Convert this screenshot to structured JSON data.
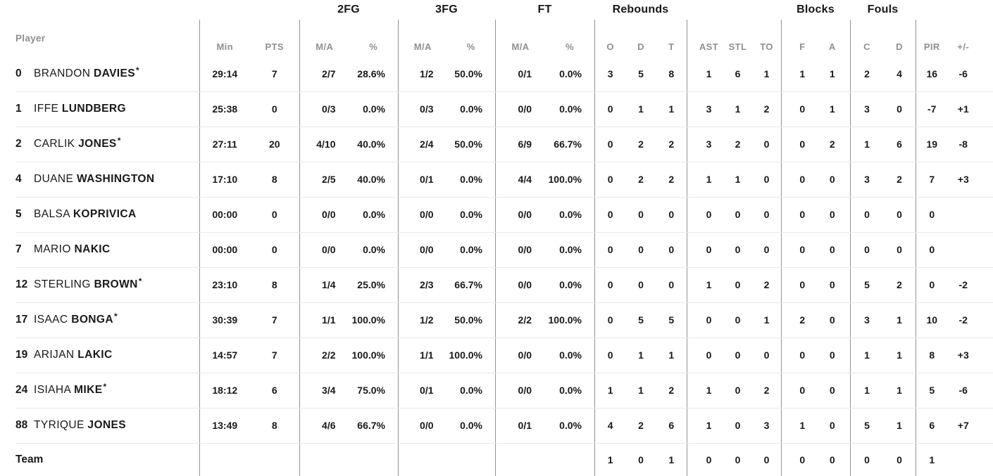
{
  "colors": {
    "background": "#ffffff",
    "text_dark": "#17191c",
    "text_gray": "#8c8f94",
    "vertical_divider": "#939397",
    "row_separator": "#e9e9e9"
  },
  "table": {
    "starter_marker": "*",
    "header": {
      "player": "Player",
      "groups": [
        {
          "label": "",
          "cols": [
            "Min",
            "PTS"
          ]
        },
        {
          "label": "2FG",
          "cols": [
            "M/A",
            "%"
          ]
        },
        {
          "label": "3FG",
          "cols": [
            "M/A",
            "%"
          ]
        },
        {
          "label": "FT",
          "cols": [
            "M/A",
            "%"
          ]
        },
        {
          "label": "Rebounds",
          "cols": [
            "O",
            "D",
            "T"
          ]
        },
        {
          "label": "",
          "cols": [
            "AST",
            "STL",
            "TO"
          ]
        },
        {
          "label": "Blocks",
          "cols": [
            "F",
            "A"
          ]
        },
        {
          "label": "Fouls",
          "cols": [
            "C",
            "D"
          ]
        },
        {
          "label": "",
          "cols": [
            "PIR",
            "+/-"
          ]
        }
      ]
    },
    "rows": [
      {
        "number": "0",
        "first_name": "BRANDON",
        "last_name": "DAVIES",
        "starter": true,
        "min": "29:14",
        "pts": "7",
        "fg2_ma": "2/7",
        "fg2_pct": "28.6%",
        "fg3_ma": "1/2",
        "fg3_pct": "50.0%",
        "ft_ma": "0/1",
        "ft_pct": "0.0%",
        "reb_o": "3",
        "reb_d": "5",
        "reb_t": "8",
        "ast": "1",
        "stl": "6",
        "to": "1",
        "blk_f": "1",
        "blk_a": "1",
        "foul_c": "2",
        "foul_d": "4",
        "pir": "16",
        "plus_minus": "-6"
      },
      {
        "number": "1",
        "first_name": "IFFE",
        "last_name": "LUNDBERG",
        "starter": false,
        "min": "25:38",
        "pts": "0",
        "fg2_ma": "0/3",
        "fg2_pct": "0.0%",
        "fg3_ma": "0/3",
        "fg3_pct": "0.0%",
        "ft_ma": "0/0",
        "ft_pct": "0.0%",
        "reb_o": "0",
        "reb_d": "1",
        "reb_t": "1",
        "ast": "3",
        "stl": "1",
        "to": "2",
        "blk_f": "0",
        "blk_a": "1",
        "foul_c": "3",
        "foul_d": "0",
        "pir": "-7",
        "plus_minus": "+1"
      },
      {
        "number": "2",
        "first_name": "CARLIK",
        "last_name": "JONES",
        "starter": true,
        "min": "27:11",
        "pts": "20",
        "fg2_ma": "4/10",
        "fg2_pct": "40.0%",
        "fg3_ma": "2/4",
        "fg3_pct": "50.0%",
        "ft_ma": "6/9",
        "ft_pct": "66.7%",
        "reb_o": "0",
        "reb_d": "2",
        "reb_t": "2",
        "ast": "3",
        "stl": "2",
        "to": "0",
        "blk_f": "0",
        "blk_a": "2",
        "foul_c": "1",
        "foul_d": "6",
        "pir": "19",
        "plus_minus": "-8"
      },
      {
        "number": "4",
        "first_name": "DUANE",
        "last_name": "WASHINGTON",
        "starter": false,
        "min": "17:10",
        "pts": "8",
        "fg2_ma": "2/5",
        "fg2_pct": "40.0%",
        "fg3_ma": "0/1",
        "fg3_pct": "0.0%",
        "ft_ma": "4/4",
        "ft_pct": "100.0%",
        "reb_o": "0",
        "reb_d": "2",
        "reb_t": "2",
        "ast": "1",
        "stl": "1",
        "to": "0",
        "blk_f": "0",
        "blk_a": "0",
        "foul_c": "3",
        "foul_d": "2",
        "pir": "7",
        "plus_minus": "+3"
      },
      {
        "number": "5",
        "first_name": "BALSA",
        "last_name": "KOPRIVICA",
        "starter": false,
        "min": "00:00",
        "pts": "0",
        "fg2_ma": "0/0",
        "fg2_pct": "0.0%",
        "fg3_ma": "0/0",
        "fg3_pct": "0.0%",
        "ft_ma": "0/0",
        "ft_pct": "0.0%",
        "reb_o": "0",
        "reb_d": "0",
        "reb_t": "0",
        "ast": "0",
        "stl": "0",
        "to": "0",
        "blk_f": "0",
        "blk_a": "0",
        "foul_c": "0",
        "foul_d": "0",
        "pir": "0",
        "plus_minus": ""
      },
      {
        "number": "7",
        "first_name": "MARIO",
        "last_name": "NAKIC",
        "starter": false,
        "min": "00:00",
        "pts": "0",
        "fg2_ma": "0/0",
        "fg2_pct": "0.0%",
        "fg3_ma": "0/0",
        "fg3_pct": "0.0%",
        "ft_ma": "0/0",
        "ft_pct": "0.0%",
        "reb_o": "0",
        "reb_d": "0",
        "reb_t": "0",
        "ast": "0",
        "stl": "0",
        "to": "0",
        "blk_f": "0",
        "blk_a": "0",
        "foul_c": "0",
        "foul_d": "0",
        "pir": "0",
        "plus_minus": ""
      },
      {
        "number": "12",
        "first_name": "STERLING",
        "last_name": "BROWN",
        "starter": true,
        "min": "23:10",
        "pts": "8",
        "fg2_ma": "1/4",
        "fg2_pct": "25.0%",
        "fg3_ma": "2/3",
        "fg3_pct": "66.7%",
        "ft_ma": "0/0",
        "ft_pct": "0.0%",
        "reb_o": "0",
        "reb_d": "0",
        "reb_t": "0",
        "ast": "1",
        "stl": "0",
        "to": "2",
        "blk_f": "0",
        "blk_a": "0",
        "foul_c": "5",
        "foul_d": "2",
        "pir": "0",
        "plus_minus": "-2"
      },
      {
        "number": "17",
        "first_name": "ISAAC",
        "last_name": "BONGA",
        "starter": true,
        "min": "30:39",
        "pts": "7",
        "fg2_ma": "1/1",
        "fg2_pct": "100.0%",
        "fg3_ma": "1/2",
        "fg3_pct": "50.0%",
        "ft_ma": "2/2",
        "ft_pct": "100.0%",
        "reb_o": "0",
        "reb_d": "5",
        "reb_t": "5",
        "ast": "0",
        "stl": "0",
        "to": "1",
        "blk_f": "2",
        "blk_a": "0",
        "foul_c": "3",
        "foul_d": "1",
        "pir": "10",
        "plus_minus": "-2"
      },
      {
        "number": "19",
        "first_name": "ARIJAN",
        "last_name": "LAKIC",
        "starter": false,
        "min": "14:57",
        "pts": "7",
        "fg2_ma": "2/2",
        "fg2_pct": "100.0%",
        "fg3_ma": "1/1",
        "fg3_pct": "100.0%",
        "ft_ma": "0/0",
        "ft_pct": "0.0%",
        "reb_o": "0",
        "reb_d": "1",
        "reb_t": "1",
        "ast": "0",
        "stl": "0",
        "to": "0",
        "blk_f": "0",
        "blk_a": "0",
        "foul_c": "1",
        "foul_d": "1",
        "pir": "8",
        "plus_minus": "+3"
      },
      {
        "number": "24",
        "first_name": "ISIAHA",
        "last_name": "MIKE",
        "starter": true,
        "min": "18:12",
        "pts": "6",
        "fg2_ma": "3/4",
        "fg2_pct": "75.0%",
        "fg3_ma": "0/1",
        "fg3_pct": "0.0%",
        "ft_ma": "0/0",
        "ft_pct": "0.0%",
        "reb_o": "1",
        "reb_d": "1",
        "reb_t": "2",
        "ast": "1",
        "stl": "0",
        "to": "2",
        "blk_f": "0",
        "blk_a": "0",
        "foul_c": "1",
        "foul_d": "1",
        "pir": "5",
        "plus_minus": "-6"
      },
      {
        "number": "88",
        "first_name": "TYRIQUE",
        "last_name": "JONES",
        "starter": false,
        "min": "13:49",
        "pts": "8",
        "fg2_ma": "4/6",
        "fg2_pct": "66.7%",
        "fg3_ma": "0/0",
        "fg3_pct": "0.0%",
        "ft_ma": "0/1",
        "ft_pct": "0.0%",
        "reb_o": "4",
        "reb_d": "2",
        "reb_t": "6",
        "ast": "1",
        "stl": "0",
        "to": "3",
        "blk_f": "1",
        "blk_a": "0",
        "foul_c": "5",
        "foul_d": "1",
        "pir": "6",
        "plus_minus": "+7"
      }
    ],
    "team_row": {
      "label": "Team",
      "min": "",
      "pts": "",
      "fg2_ma": "",
      "fg2_pct": "",
      "fg3_ma": "",
      "fg3_pct": "",
      "ft_ma": "",
      "ft_pct": "",
      "reb_o": "1",
      "reb_d": "0",
      "reb_t": "1",
      "ast": "0",
      "stl": "0",
      "to": "0",
      "blk_f": "0",
      "blk_a": "0",
      "foul_c": "0",
      "foul_d": "0",
      "pir": "1",
      "plus_minus": ""
    }
  }
}
